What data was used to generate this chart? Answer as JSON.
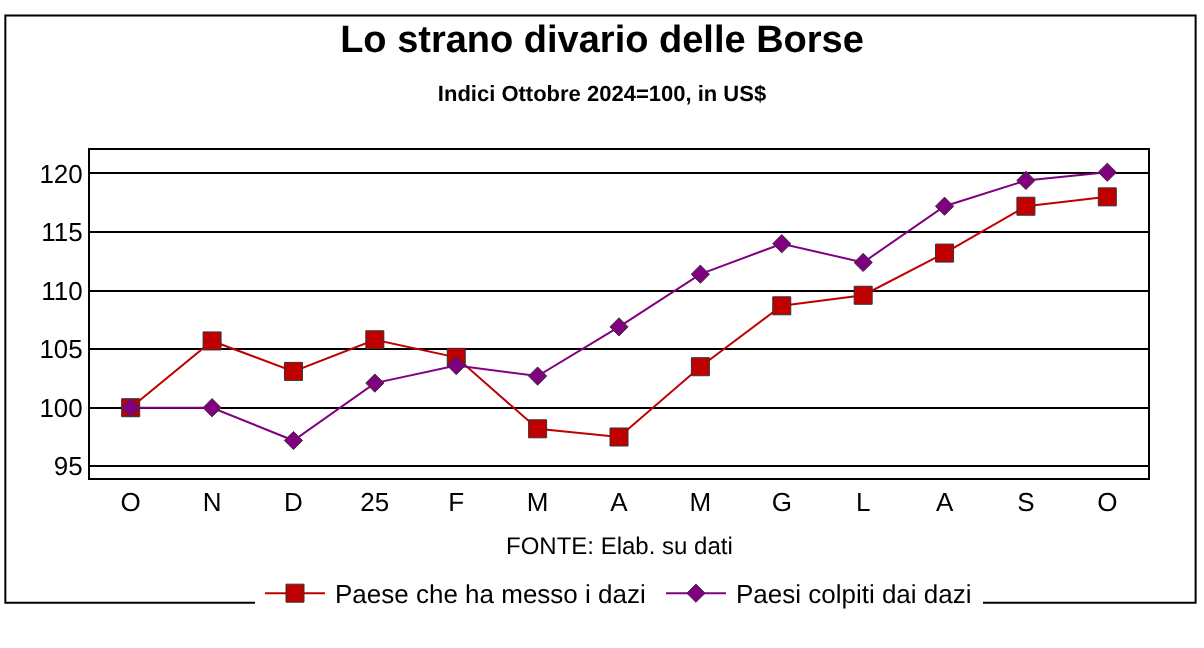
{
  "chart_data": {
    "type": "line",
    "title": "Lo strano divario delle Borse",
    "subtitle": "Indici Ottobre 2024=100, in US$",
    "categories": [
      "O",
      "N",
      "D",
      "25",
      "F",
      "M",
      "A",
      "M",
      "G",
      "L",
      "A",
      "S",
      "O"
    ],
    "series": [
      {
        "name": "Paese che ha messo i dazi",
        "color": "#c00000",
        "marker": "square",
        "values": [
          100,
          105.7,
          103.1,
          105.8,
          104.3,
          98.2,
          97.5,
          103.5,
          108.7,
          109.6,
          113.2,
          117.2,
          118.0
        ]
      },
      {
        "name": "Paesi colpiti dai dazi",
        "color": "#800080",
        "marker": "diamond",
        "values": [
          100,
          100,
          97.2,
          102.1,
          103.6,
          102.7,
          106.9,
          111.4,
          114.0,
          112.4,
          117.2,
          119.4,
          120.1
        ]
      }
    ],
    "ylim": [
      94,
      122
    ],
    "yticks": [
      95,
      100,
      105,
      110,
      115,
      120
    ],
    "grid": "y",
    "legend": "bottom",
    "line_style": "solid",
    "annotations": [
      "FONTE: Elab. su dati"
    ]
  }
}
